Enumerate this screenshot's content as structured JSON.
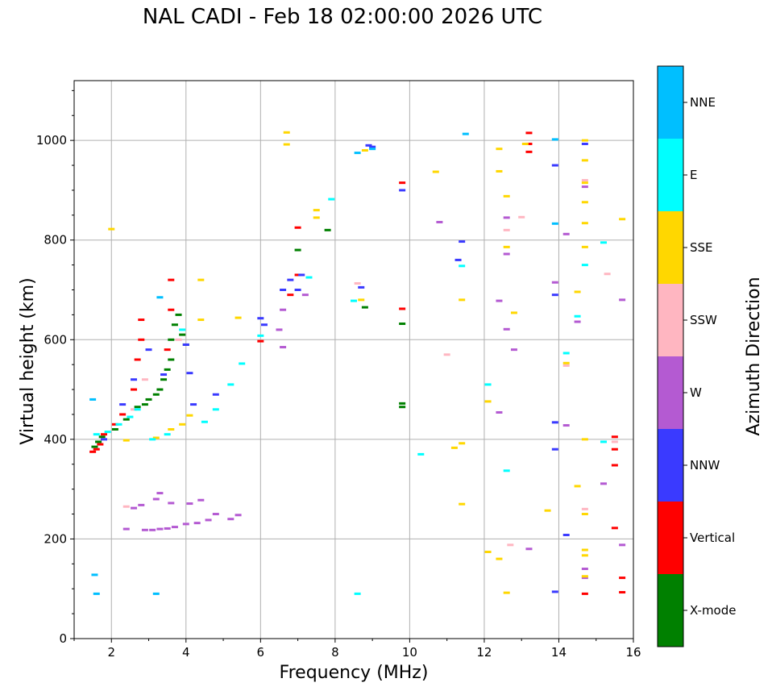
{
  "chart_data": {
    "type": "scatter",
    "title": "NAL CADI - Feb 18 02:00:00 2026 UTC",
    "xlabel": "Frequency (MHz)",
    "ylabel": "Virtual height (km)",
    "xlim": [
      1,
      16
    ],
    "ylim": [
      0,
      1120
    ],
    "xticks": [
      2,
      4,
      6,
      8,
      10,
      12,
      14,
      16
    ],
    "yticks": [
      0,
      200,
      400,
      600,
      800,
      1000
    ],
    "grid": true,
    "colorbar": {
      "label": "Azimuth Direction",
      "categories": [
        "X-mode",
        "Vertical",
        "NNW",
        "W",
        "SSW",
        "SSE",
        "E",
        "NNE"
      ],
      "colors": [
        "#008000",
        "#ff0000",
        "#3a3aff",
        "#b45ad2",
        "#ffb6c1",
        "#ffd700",
        "#00ffff",
        "#00bfff"
      ]
    },
    "series": [
      {
        "name": "X-mode",
        "points": [
          [
            1.55,
            385
          ],
          [
            1.65,
            395
          ],
          [
            1.75,
            405
          ],
          [
            2.1,
            420
          ],
          [
            2.4,
            440
          ],
          [
            2.7,
            465
          ],
          [
            2.9,
            470
          ],
          [
            3.0,
            480
          ],
          [
            3.2,
            490
          ],
          [
            3.3,
            500
          ],
          [
            3.4,
            520
          ],
          [
            3.5,
            540
          ],
          [
            3.6,
            560
          ],
          [
            3.6,
            600
          ],
          [
            3.7,
            630
          ],
          [
            3.8,
            650
          ],
          [
            3.9,
            610
          ],
          [
            4.0,
            590
          ],
          [
            7.0,
            780
          ],
          [
            7.8,
            820
          ],
          [
            9.8,
            632
          ],
          [
            9.8,
            465
          ],
          [
            9.8,
            472
          ],
          [
            8.8,
            665
          ]
        ]
      },
      {
        "name": "Vertical",
        "points": [
          [
            1.5,
            375
          ],
          [
            1.6,
            380
          ],
          [
            1.7,
            390
          ],
          [
            1.8,
            410
          ],
          [
            2.1,
            430
          ],
          [
            2.3,
            450
          ],
          [
            2.6,
            500
          ],
          [
            2.7,
            560
          ],
          [
            2.8,
            600
          ],
          [
            2.8,
            640
          ],
          [
            3.5,
            580
          ],
          [
            3.6,
            660
          ],
          [
            3.6,
            720
          ],
          [
            6.0,
            597
          ],
          [
            6.8,
            690
          ],
          [
            7.0,
            730
          ],
          [
            7.0,
            825
          ],
          [
            9.8,
            915
          ],
          [
            9.8,
            662
          ],
          [
            13.2,
            1015
          ],
          [
            13.2,
            993
          ],
          [
            13.2,
            977
          ],
          [
            14.7,
            90
          ],
          [
            15.5,
            405
          ],
          [
            15.5,
            380
          ],
          [
            15.5,
            348
          ],
          [
            15.5,
            222
          ],
          [
            15.7,
            122
          ],
          [
            15.7,
            93
          ]
        ]
      },
      {
        "name": "NNW",
        "points": [
          [
            1.8,
            400
          ],
          [
            2.3,
            470
          ],
          [
            2.6,
            520
          ],
          [
            3.0,
            580
          ],
          [
            3.4,
            530
          ],
          [
            4.0,
            590
          ],
          [
            4.1,
            533
          ],
          [
            4.2,
            470
          ],
          [
            4.8,
            490
          ],
          [
            6.0,
            643
          ],
          [
            6.1,
            630
          ],
          [
            6.6,
            700
          ],
          [
            6.8,
            720
          ],
          [
            7.0,
            700
          ],
          [
            7.1,
            730
          ],
          [
            8.7,
            705
          ],
          [
            8.9,
            990
          ],
          [
            9.0,
            987
          ],
          [
            9.8,
            900
          ],
          [
            11.3,
            760
          ],
          [
            11.4,
            797
          ],
          [
            13.9,
            950
          ],
          [
            13.9,
            690
          ],
          [
            13.9,
            434
          ],
          [
            13.9,
            380
          ],
          [
            13.9,
            94
          ],
          [
            14.2,
            208
          ],
          [
            14.7,
            993
          ]
        ]
      },
      {
        "name": "W",
        "points": [
          [
            2.4,
            220
          ],
          [
            2.9,
            218
          ],
          [
            3.1,
            218
          ],
          [
            3.3,
            220
          ],
          [
            3.5,
            221
          ],
          [
            3.7,
            224
          ],
          [
            4.0,
            230
          ],
          [
            4.3,
            232
          ],
          [
            4.6,
            238
          ],
          [
            4.8,
            250
          ],
          [
            5.2,
            240
          ],
          [
            5.4,
            248
          ],
          [
            3.2,
            280
          ],
          [
            3.3,
            292
          ],
          [
            3.6,
            272
          ],
          [
            4.1,
            271
          ],
          [
            4.4,
            278
          ],
          [
            2.8,
            268
          ],
          [
            2.6,
            262
          ],
          [
            6.5,
            620
          ],
          [
            6.6,
            585
          ],
          [
            6.6,
            660
          ],
          [
            7.2,
            690
          ],
          [
            10.8,
            836
          ],
          [
            12.4,
            678
          ],
          [
            12.4,
            454
          ],
          [
            12.6,
            772
          ],
          [
            12.6,
            621
          ],
          [
            12.6,
            845
          ],
          [
            12.8,
            580
          ],
          [
            13.2,
            180
          ],
          [
            13.9,
            715
          ],
          [
            14.2,
            812
          ],
          [
            14.2,
            428
          ],
          [
            14.5,
            636
          ],
          [
            14.7,
            907
          ],
          [
            14.7,
            140
          ],
          [
            14.7,
            122
          ],
          [
            15.2,
            311
          ],
          [
            15.7,
            680
          ],
          [
            15.7,
            188
          ]
        ]
      },
      {
        "name": "SSW",
        "points": [
          [
            2.4,
            265
          ],
          [
            2.6,
            460
          ],
          [
            2.9,
            520
          ],
          [
            3.8,
            600
          ],
          [
            8.6,
            713
          ],
          [
            11.0,
            570
          ],
          [
            12.6,
            820
          ],
          [
            12.7,
            188
          ],
          [
            13.0,
            846
          ],
          [
            14.2,
            548
          ],
          [
            14.7,
            920
          ],
          [
            14.7,
            260
          ],
          [
            15.3,
            732
          ],
          [
            15.5,
            395
          ]
        ]
      },
      {
        "name": "SSE",
        "points": [
          [
            2.0,
            822
          ],
          [
            2.4,
            398
          ],
          [
            3.2,
            403
          ],
          [
            3.6,
            420
          ],
          [
            3.9,
            430
          ],
          [
            4.1,
            448
          ],
          [
            4.4,
            720
          ],
          [
            4.4,
            640
          ],
          [
            5.4,
            644
          ],
          [
            6.7,
            1016
          ],
          [
            6.7,
            992
          ],
          [
            7.5,
            860
          ],
          [
            7.5,
            845
          ],
          [
            8.7,
            680
          ],
          [
            8.8,
            980
          ],
          [
            10.7,
            937
          ],
          [
            11.2,
            383
          ],
          [
            11.4,
            392
          ],
          [
            11.4,
            270
          ],
          [
            11.4,
            680
          ],
          [
            12.1,
            174
          ],
          [
            12.1,
            476
          ],
          [
            12.4,
            983
          ],
          [
            12.4,
            938
          ],
          [
            12.4,
            160
          ],
          [
            12.6,
            888
          ],
          [
            12.6,
            786
          ],
          [
            12.6,
            92
          ],
          [
            12.8,
            654
          ],
          [
            13.1,
            993
          ],
          [
            13.7,
            257
          ],
          [
            14.2,
            553
          ],
          [
            14.5,
            696
          ],
          [
            14.5,
            306
          ],
          [
            14.7,
            1000
          ],
          [
            14.7,
            960
          ],
          [
            14.7,
            915
          ],
          [
            14.7,
            876
          ],
          [
            14.7,
            834
          ],
          [
            14.7,
            786
          ],
          [
            14.7,
            400
          ],
          [
            14.7,
            250
          ],
          [
            14.7,
            178
          ],
          [
            14.7,
            167
          ],
          [
            14.7,
            125
          ],
          [
            15.7,
            842
          ]
        ]
      },
      {
        "name": "E",
        "points": [
          [
            1.6,
            410
          ],
          [
            1.9,
            415
          ],
          [
            2.2,
            430
          ],
          [
            2.5,
            445
          ],
          [
            2.7,
            460
          ],
          [
            3.1,
            400
          ],
          [
            3.5,
            410
          ],
          [
            3.9,
            620
          ],
          [
            4.5,
            435
          ],
          [
            4.8,
            460
          ],
          [
            5.2,
            510
          ],
          [
            5.5,
            552
          ],
          [
            6.0,
            608
          ],
          [
            7.3,
            725
          ],
          [
            7.9,
            882
          ],
          [
            8.5,
            678
          ],
          [
            8.6,
            90
          ],
          [
            10.3,
            370
          ],
          [
            11.4,
            748
          ],
          [
            12.1,
            510
          ],
          [
            12.6,
            337
          ],
          [
            14.2,
            573
          ],
          [
            14.5,
            647
          ],
          [
            14.7,
            750
          ],
          [
            15.2,
            795
          ],
          [
            15.2,
            395
          ]
        ]
      },
      {
        "name": "NNE",
        "points": [
          [
            1.5,
            480
          ],
          [
            1.55,
            128
          ],
          [
            1.6,
            90
          ],
          [
            3.2,
            90
          ],
          [
            3.3,
            685
          ],
          [
            8.6,
            975
          ],
          [
            9.0,
            983
          ],
          [
            11.5,
            1013
          ],
          [
            13.9,
            1002
          ],
          [
            13.9,
            833
          ]
        ]
      }
    ]
  }
}
